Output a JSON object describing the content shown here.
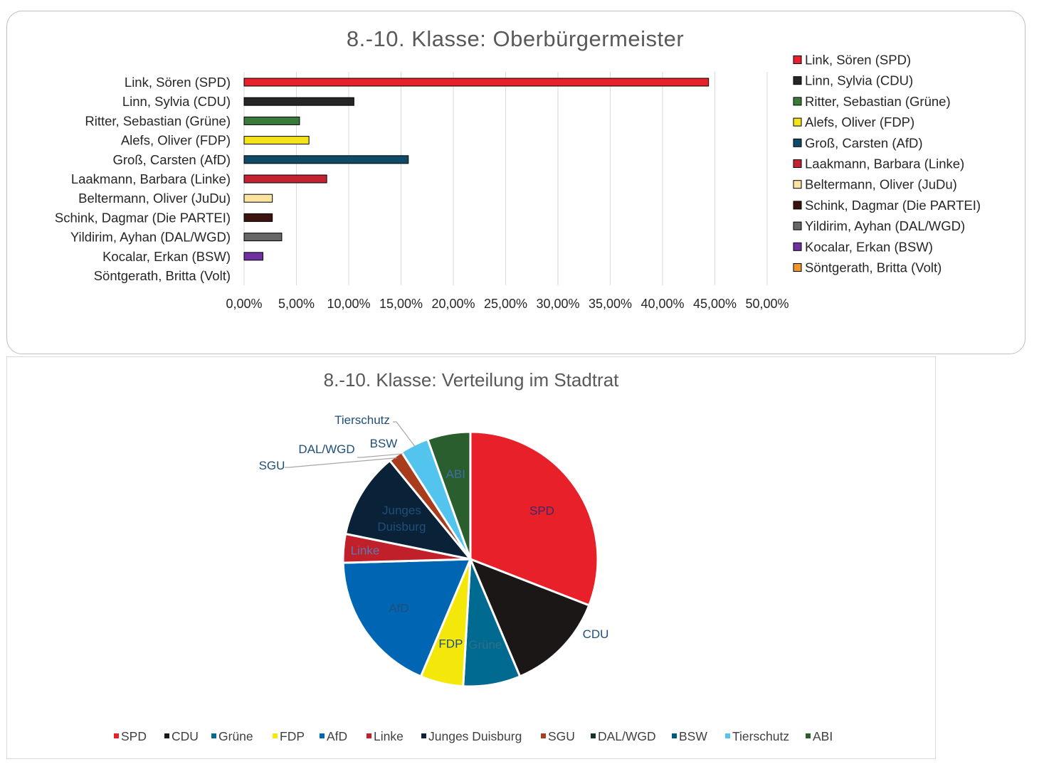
{
  "chart_data": [
    {
      "type": "bar",
      "orientation": "horizontal",
      "title": "8.-10. Klasse: Oberbürgermeister",
      "categories": [
        "Link, Sören (SPD)",
        "Linn, Sylvia (CDU)",
        "Ritter, Sebastian (Grüne)",
        "Alefs, Oliver (FDP)",
        "Groß, Carsten (AfD)",
        "Laakmann, Barbara (Linke)",
        "Beltermann, Oliver (JuDu)",
        "Schink, Dagmar (Die PARTEI)",
        "Yildirim, Ayhan (DAL/WGD)",
        "Kocalar, Erkan (BSW)",
        "Söntgerath, Britta (Volt)"
      ],
      "values": [
        44.4,
        10.5,
        5.3,
        6.2,
        15.7,
        7.9,
        2.7,
        2.7,
        3.6,
        1.8,
        0.0
      ],
      "colors": [
        "#e8202a",
        "#262626",
        "#3a7a3a",
        "#f4e21a",
        "#0f4a66",
        "#c42230",
        "#fce3a0",
        "#3b1410",
        "#666666",
        "#7030a0",
        "#f0962a"
      ],
      "tick_labels": [
        "0,00%",
        "5,00%",
        "10,00%",
        "15,00%",
        "20,00%",
        "25,00%",
        "30,00%",
        "35,00%",
        "40,00%",
        "45,00%",
        "50,00%"
      ],
      "xlim": [
        0,
        50
      ],
      "grid": true,
      "legend": "right"
    },
    {
      "type": "pie",
      "title": "8.-10. Klasse: Verteilung im Stadtrat",
      "categories": [
        "SPD",
        "CDU",
        "Grüne",
        "FDP",
        "AfD",
        "Linke",
        "Junges Duisburg",
        "SGU",
        "DAL/WGD",
        "BSW",
        "Tierschutz",
        "ABI"
      ],
      "values": [
        17,
        7,
        4,
        3,
        10,
        2,
        6,
        1,
        0,
        0,
        2,
        3
      ],
      "colors": [
        "#e8202a",
        "#1c1717",
        "#006a90",
        "#f3e80a",
        "#0066b3",
        "#c0202a",
        "#0a2238",
        "#a83c1c",
        "#123420",
        "#00597a",
        "#52c4ee",
        "#2a5e2e"
      ],
      "slice_labels": [
        "SPD",
        "CDU",
        "Grüne",
        "FDP",
        "AfD",
        "Linke",
        "Junges Duisburg",
        "SGU",
        "DAL/WGD",
        "BSW",
        "Tierschutz",
        "ABI"
      ],
      "legend": "bottom"
    }
  ]
}
